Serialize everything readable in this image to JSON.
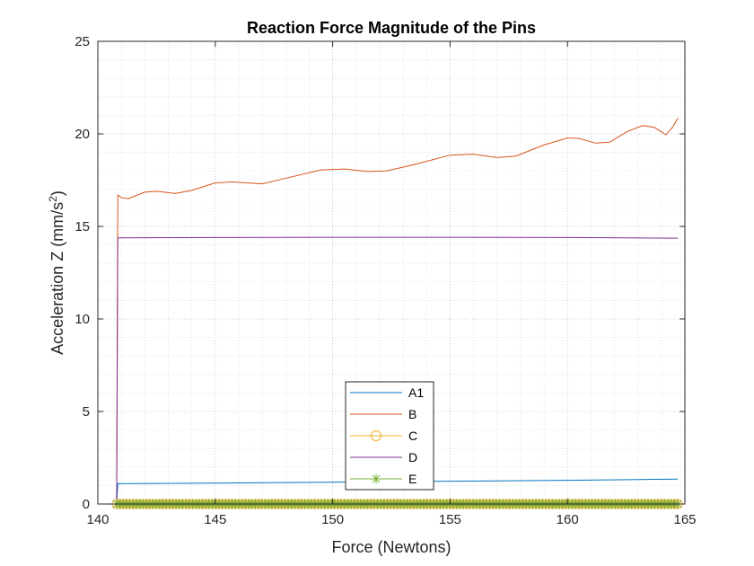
{
  "chart_data": {
    "type": "line",
    "title": "Reaction Force Magnitude of the Pins",
    "xlabel": "Force (Newtons)",
    "ylabel_main": "Acceleration Z (mm/s",
    "ylabel_sup": "2",
    "ylabel_close": ")",
    "xlim": [
      140,
      165
    ],
    "ylim": [
      0,
      25
    ],
    "xticks": [
      140,
      145,
      150,
      155,
      160,
      165
    ],
    "yticks": [
      0,
      5,
      10,
      15,
      20,
      25
    ],
    "xtick_labels": [
      "140",
      "145",
      "150",
      "155",
      "160",
      "165"
    ],
    "ytick_labels": [
      "0",
      "5",
      "10",
      "15",
      "20",
      "25"
    ],
    "grid": "major and minor, dotted",
    "legend_location": "bottom-center",
    "x_start": 140.8,
    "x_end": 164.7,
    "series": [
      {
        "name": "A1",
        "color": "#0072BD",
        "marker": "none",
        "points": [
          [
            140.8,
            0
          ],
          [
            140.85,
            1.1
          ],
          [
            145,
            1.13
          ],
          [
            150,
            1.18
          ],
          [
            155,
            1.23
          ],
          [
            160,
            1.28
          ],
          [
            164.7,
            1.35
          ]
        ]
      },
      {
        "name": "B",
        "color": "#D95319",
        "marker": "none",
        "points": [
          [
            140.8,
            0
          ],
          [
            140.85,
            16.7
          ],
          [
            141.0,
            16.55
          ],
          [
            141.3,
            16.5
          ],
          [
            142.0,
            16.85
          ],
          [
            142.5,
            16.9
          ],
          [
            143.3,
            16.78
          ],
          [
            144.0,
            16.95
          ],
          [
            145.0,
            17.35
          ],
          [
            145.7,
            17.4
          ],
          [
            147.0,
            17.3
          ],
          [
            148.0,
            17.6
          ],
          [
            149.5,
            18.05
          ],
          [
            150.5,
            18.1
          ],
          [
            151.5,
            17.97
          ],
          [
            152.3,
            18.0
          ],
          [
            153.5,
            18.35
          ],
          [
            155.0,
            18.85
          ],
          [
            156.0,
            18.9
          ],
          [
            157.0,
            18.72
          ],
          [
            157.8,
            18.8
          ],
          [
            159.0,
            19.4
          ],
          [
            160.0,
            19.78
          ],
          [
            160.5,
            19.75
          ],
          [
            161.2,
            19.5
          ],
          [
            161.8,
            19.55
          ],
          [
            162.5,
            20.1
          ],
          [
            163.2,
            20.45
          ],
          [
            163.7,
            20.35
          ],
          [
            164.2,
            19.95
          ],
          [
            164.5,
            20.4
          ],
          [
            164.7,
            20.85
          ]
        ]
      },
      {
        "name": "C",
        "color": "#EDB120",
        "marker": "circle",
        "points": [
          [
            140.8,
            0
          ],
          [
            164.7,
            0
          ]
        ]
      },
      {
        "name": "D",
        "color": "#7E2F8E",
        "marker": "none",
        "points": [
          [
            140.8,
            0
          ],
          [
            140.85,
            14.38
          ],
          [
            145,
            14.4
          ],
          [
            150,
            14.41
          ],
          [
            155,
            14.41
          ],
          [
            160,
            14.4
          ],
          [
            164.7,
            14.36
          ]
        ]
      },
      {
        "name": "E",
        "color": "#77AC30",
        "marker": "asterisk",
        "points": [
          [
            140.8,
            0
          ],
          [
            164.7,
            0
          ]
        ]
      }
    ]
  }
}
